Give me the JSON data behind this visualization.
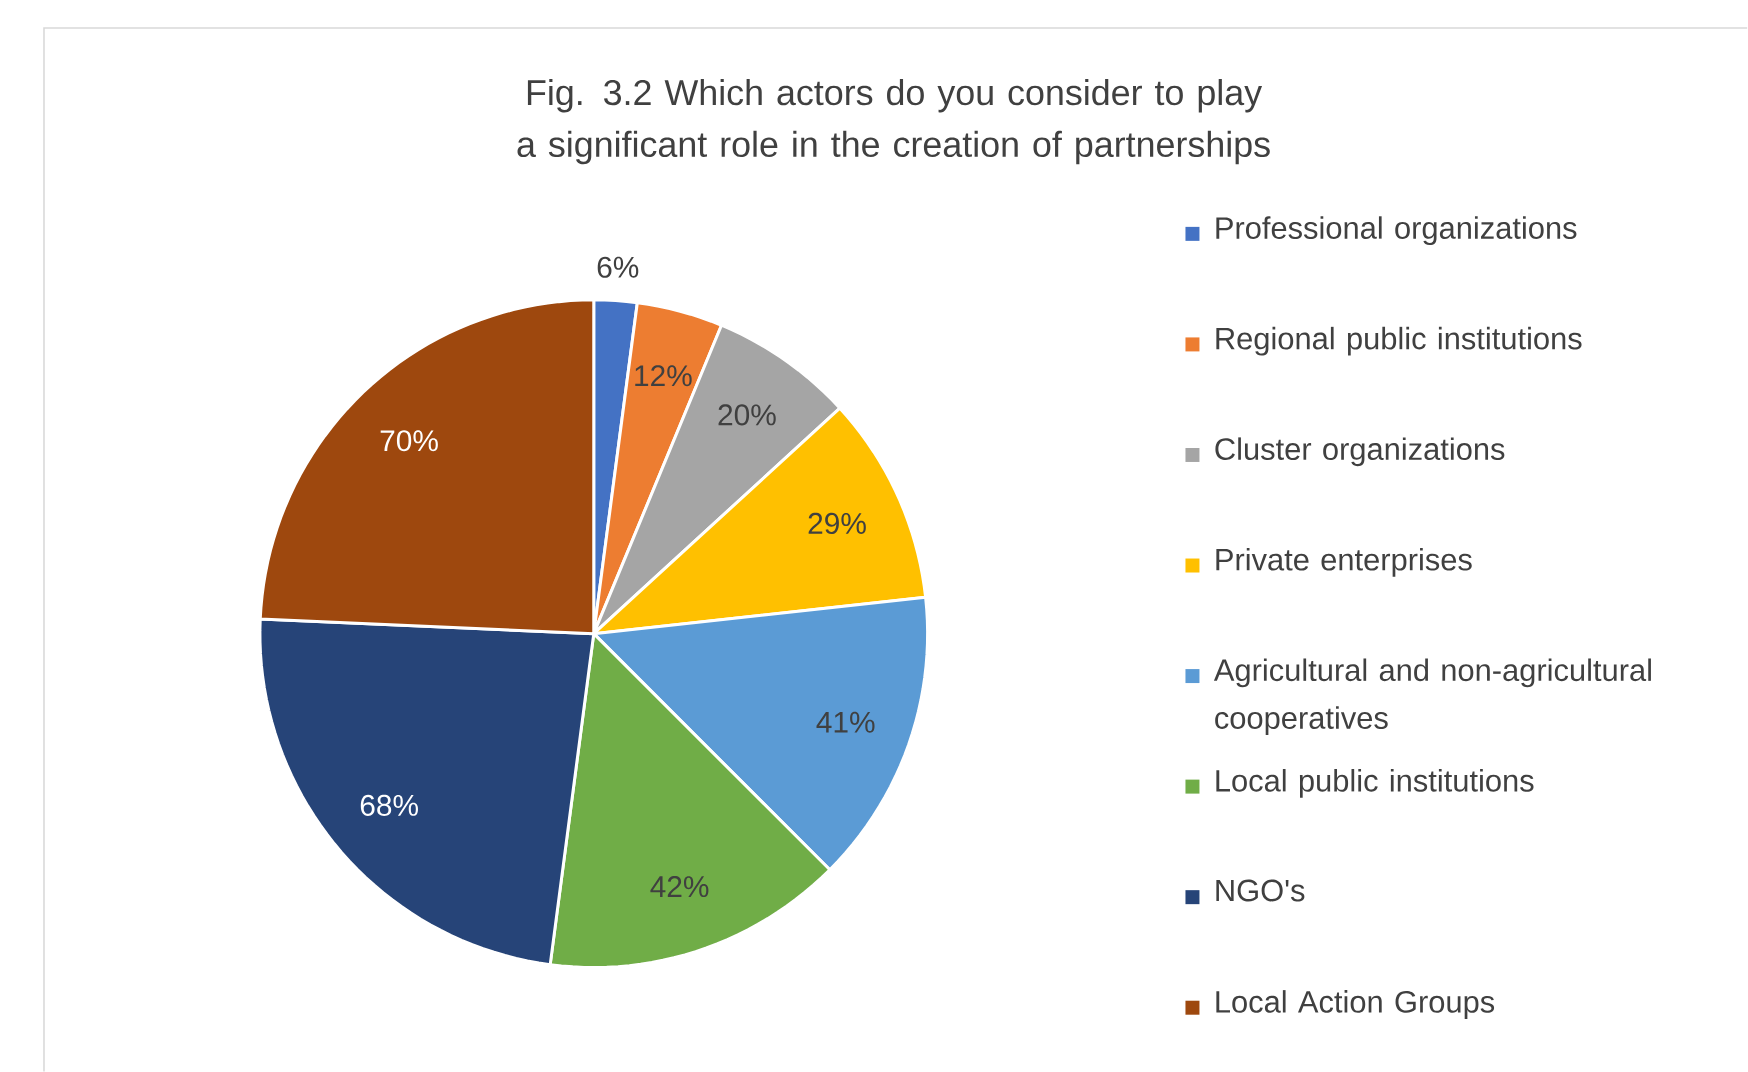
{
  "chart_data": {
    "type": "pie",
    "title": "Fig. 3.2 Which actors do you consider to play a significant role in the creation of partnerships",
    "categories": [
      "Professional organizations",
      "Regional public institutions",
      "Cluster organizations",
      "Private enterprises",
      "Agricultural and non-agricultural cooperatives",
      "Local public institutions",
      "NGO's",
      "Local Action Groups"
    ],
    "values": [
      6,
      12,
      20,
      29,
      41,
      42,
      68,
      70
    ],
    "value_labels": [
      "6%",
      "12%",
      "20%",
      "29%",
      "41%",
      "42%",
      "68%",
      "70%"
    ],
    "colors": [
      "#4472c4",
      "#ed7d31",
      "#a5a5a5",
      "#ffc000",
      "#5b9bd5",
      "#70ad47",
      "#264478",
      "#9e480e"
    ],
    "legend": "right"
  }
}
